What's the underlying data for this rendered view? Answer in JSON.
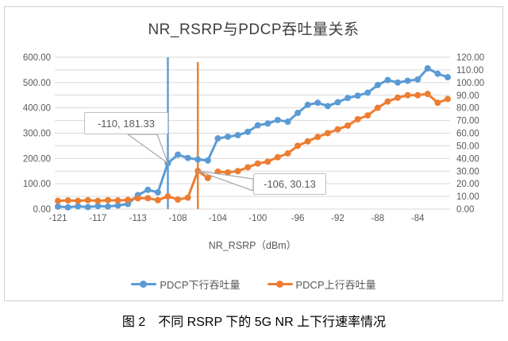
{
  "page": {
    "caption": "图 2　不同 RSRP 下的 5G NR 上下行速率情况"
  },
  "colors": {
    "downlink": "#5b9bd5",
    "uplink": "#ed7d31",
    "grid": "#d9d9d9",
    "axis_text": "#595959",
    "annotation_border": "#bfbfbf",
    "leader_line": "#a6a6a6"
  },
  "chart_data": {
    "type": "line",
    "title": "NR_RSRP与PDCP吞吐量关系",
    "xlabel": "NR_RSRP（dBm）",
    "ylabel_left": "",
    "ylabel_right": "",
    "grid": "horizontal gridlines every 50 (left axis) / 10 (right axis)",
    "legend_position": "bottom",
    "categories": [
      -121,
      -120,
      -119,
      -118,
      -117,
      -116,
      -115,
      -114,
      -113,
      -112,
      -111,
      -110,
      -108,
      -107,
      -106,
      -105,
      -104,
      -103,
      -102,
      -101,
      -100,
      -99,
      -98,
      -97,
      -96,
      -95,
      -94,
      -93,
      -92,
      -91,
      -90,
      -89,
      -88,
      -87,
      -86,
      -85,
      -84,
      -83,
      -82,
      -81
    ],
    "series": [
      {
        "name": "PDCP下行吞吐量",
        "axis": "left",
        "color": "#5b9bd5",
        "values": [
          10,
          7,
          11,
          8,
          12,
          10,
          14,
          20,
          55,
          76,
          66,
          181.33,
          215,
          202,
          196,
          192,
          279,
          286,
          292,
          305,
          331,
          338,
          352,
          345,
          380,
          412,
          420,
          407,
          422,
          439,
          448,
          460,
          490,
          510,
          500,
          507,
          512,
          556,
          535,
          521
        ]
      },
      {
        "name": "PDCP上行吞吐量",
        "axis": "right",
        "color": "#ed7d31",
        "values": [
          6.5,
          6.8,
          6.5,
          7,
          6.5,
          7,
          6.8,
          7.2,
          8.5,
          8.6,
          7,
          10,
          7.5,
          9,
          30.13,
          24.5,
          29.5,
          29,
          30,
          33,
          36,
          37.5,
          41,
          44,
          50,
          53.5,
          57,
          60,
          63,
          66,
          71,
          74,
          80,
          85,
          88,
          90,
          90,
          91,
          84,
          87
        ]
      }
    ],
    "left_axis": {
      "min": 0,
      "max": 600,
      "tick_step": 100,
      "tick_labels": [
        "0.00",
        "100.00",
        "200.00",
        "300.00",
        "400.00",
        "500.00",
        "600.00"
      ]
    },
    "right_axis": {
      "min": 0,
      "max": 120,
      "tick_step": 10,
      "tick_labels": [
        "0.00",
        "10.00",
        "20.00",
        "30.00",
        "40.00",
        "50.00",
        "60.00",
        "70.00",
        "80.00",
        "90.00",
        "100.00",
        "110.00",
        "120.00"
      ]
    },
    "x_tick_labels": [
      "-121",
      "-117",
      "-113",
      "-108",
      "-104",
      "-100",
      "-96",
      "-92",
      "-88",
      "-84"
    ],
    "x_tick_indices": [
      0,
      4,
      8,
      12,
      16,
      20,
      24,
      28,
      32,
      36
    ],
    "vertical_lines": [
      {
        "category": -110,
        "color": "#5b9bd5"
      },
      {
        "category": -106,
        "color": "#ed7d31"
      }
    ],
    "annotations": [
      {
        "text": "-110, 181.33",
        "series": "PDCP下行吞吐量",
        "category": -110,
        "value": 181.33
      },
      {
        "text": "-106, 30.13",
        "series": "PDCP上行吞吐量",
        "category": -106,
        "value": 30.13
      }
    ]
  }
}
